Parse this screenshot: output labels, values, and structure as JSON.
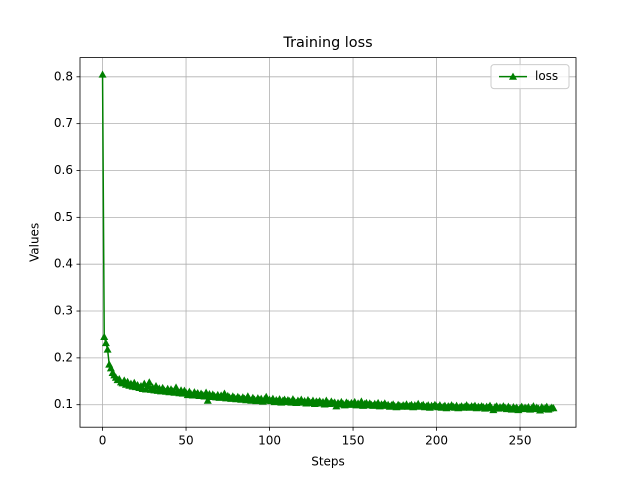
{
  "chart_data": {
    "type": "line",
    "title": "Training loss",
    "x_label": "Steps",
    "y_label": "Values",
    "x": [
      0,
      1,
      2,
      3,
      4,
      5,
      6,
      7,
      8,
      9,
      10,
      11,
      12,
      13,
      14,
      15,
      16,
      17,
      18,
      19,
      20,
      21,
      22,
      23,
      24,
      25,
      26,
      27,
      28,
      29,
      30,
      31,
      32,
      33,
      34,
      35,
      36,
      37,
      38,
      39,
      40,
      41,
      42,
      43,
      44,
      45,
      46,
      47,
      48,
      49,
      50,
      51,
      52,
      53,
      54,
      55,
      56,
      57,
      58,
      59,
      60,
      61,
      62,
      63,
      64,
      65,
      66,
      67,
      68,
      69,
      70,
      71,
      72,
      73,
      74,
      75,
      76,
      77,
      78,
      79,
      80,
      81,
      82,
      83,
      84,
      85,
      86,
      87,
      88,
      89,
      90,
      91,
      92,
      93,
      94,
      95,
      96,
      97,
      98,
      99,
      100,
      101,
      102,
      103,
      104,
      105,
      106,
      107,
      108,
      109,
      110,
      111,
      112,
      113,
      114,
      115,
      116,
      117,
      118,
      119,
      120,
      121,
      122,
      123,
      124,
      125,
      126,
      127,
      128,
      129,
      130,
      131,
      132,
      133,
      134,
      135,
      136,
      137,
      138,
      139,
      140,
      141,
      142,
      143,
      144,
      145,
      146,
      147,
      148,
      149,
      150,
      151,
      152,
      153,
      154,
      155,
      156,
      157,
      158,
      159,
      160,
      161,
      162,
      163,
      164,
      165,
      166,
      167,
      168,
      169,
      170,
      171,
      172,
      173,
      174,
      175,
      176,
      177,
      178,
      179,
      180,
      181,
      182,
      183,
      184,
      185,
      186,
      187,
      188,
      189,
      190,
      191,
      192,
      193,
      194,
      195,
      196,
      197,
      198,
      199,
      200,
      201,
      202,
      203,
      204,
      205,
      206,
      207,
      208,
      209,
      210,
      211,
      212,
      213,
      214,
      215,
      216,
      217,
      218,
      219,
      220,
      221,
      222,
      223,
      224,
      225,
      226,
      227,
      228,
      229,
      230,
      231,
      232,
      233,
      234,
      235,
      236,
      237,
      238,
      239,
      240,
      241,
      242,
      243,
      244,
      245,
      246,
      247,
      248,
      249,
      250,
      251,
      252,
      253,
      254,
      255,
      256,
      257,
      258,
      259,
      260,
      261,
      262,
      263,
      264,
      265,
      266,
      267,
      268,
      269,
      270
    ],
    "series": [
      {
        "name": "loss",
        "color": "#008000",
        "marker": "triangle",
        "values": [
          0.805,
          0.245,
          0.232,
          0.218,
          0.186,
          0.178,
          0.168,
          0.163,
          0.158,
          0.153,
          0.155,
          0.148,
          0.146,
          0.152,
          0.143,
          0.149,
          0.141,
          0.145,
          0.139,
          0.147,
          0.138,
          0.142,
          0.136,
          0.14,
          0.134,
          0.145,
          0.133,
          0.139,
          0.148,
          0.132,
          0.137,
          0.131,
          0.14,
          0.13,
          0.135,
          0.129,
          0.136,
          0.131,
          0.128,
          0.134,
          0.127,
          0.133,
          0.129,
          0.126,
          0.137,
          0.128,
          0.125,
          0.131,
          0.124,
          0.13,
          0.126,
          0.121,
          0.128,
          0.123,
          0.12,
          0.127,
          0.122,
          0.125,
          0.119,
          0.124,
          0.121,
          0.118,
          0.126,
          0.109,
          0.123,
          0.117,
          0.122,
          0.119,
          0.116,
          0.121,
          0.115,
          0.12,
          0.117,
          0.124,
          0.114,
          0.119,
          0.116,
          0.113,
          0.118,
          0.115,
          0.112,
          0.117,
          0.114,
          0.111,
          0.116,
          0.113,
          0.11,
          0.118,
          0.112,
          0.109,
          0.115,
          0.111,
          0.108,
          0.114,
          0.11,
          0.113,
          0.107,
          0.112,
          0.117,
          0.109,
          0.111,
          0.108,
          0.113,
          0.106,
          0.11,
          0.107,
          0.112,
          0.105,
          0.109,
          0.111,
          0.106,
          0.11,
          0.108,
          0.105,
          0.112,
          0.107,
          0.104,
          0.109,
          0.106,
          0.111,
          0.105,
          0.108,
          0.103,
          0.11,
          0.106,
          0.104,
          0.109,
          0.102,
          0.107,
          0.105,
          0.108,
          0.103,
          0.106,
          0.101,
          0.109,
          0.104,
          0.102,
          0.107,
          0.103,
          0.105,
          0.097,
          0.104,
          0.101,
          0.106,
          0.102,
          0.099,
          0.105,
          0.103,
          0.1,
          0.104,
          0.101,
          0.106,
          0.099,
          0.103,
          0.1,
          0.107,
          0.098,
          0.102,
          0.104,
          0.099,
          0.103,
          0.1,
          0.098,
          0.102,
          0.099,
          0.104,
          0.097,
          0.101,
          0.099,
          0.103,
          0.098,
          0.1,
          0.096,
          0.099,
          0.101,
          0.097,
          0.095,
          0.1,
          0.098,
          0.096,
          0.099,
          0.097,
          0.101,
          0.096,
          0.098,
          0.1,
          0.095,
          0.099,
          0.097,
          0.102,
          0.096,
          0.098,
          0.1,
          0.095,
          0.097,
          0.099,
          0.094,
          0.098,
          0.096,
          0.1,
          0.097,
          0.095,
          0.099,
          0.094,
          0.096,
          0.098,
          0.093,
          0.097,
          0.095,
          0.099,
          0.096,
          0.094,
          0.098,
          0.093,
          0.095,
          0.097,
          0.094,
          0.096,
          0.099,
          0.095,
          0.094,
          0.097,
          0.095,
          0.098,
          0.093,
          0.096,
          0.094,
          0.097,
          0.095,
          0.092,
          0.096,
          0.094,
          0.098,
          0.093,
          0.089,
          0.095,
          0.097,
          0.092,
          0.095,
          0.093,
          0.097,
          0.094,
          0.091,
          0.096,
          0.093,
          0.09,
          0.095,
          0.092,
          0.094,
          0.089,
          0.093,
          0.096,
          0.091,
          0.094,
          0.092,
          0.095,
          0.09,
          0.093,
          0.097,
          0.091,
          0.094,
          0.092,
          0.088,
          0.095,
          0.091,
          0.093,
          0.096,
          0.09,
          0.092,
          0.094,
          0.093
        ]
      }
    ],
    "xlim": [
      -13.5,
      283.5
    ],
    "ylim": [
      0.052,
      0.841
    ],
    "xticks": [
      0,
      50,
      100,
      150,
      200,
      250
    ],
    "yticks": [
      0.1,
      0.2,
      0.3,
      0.4,
      0.5,
      0.6,
      0.7,
      0.8
    ],
    "grid": true,
    "legend": "upper right"
  }
}
